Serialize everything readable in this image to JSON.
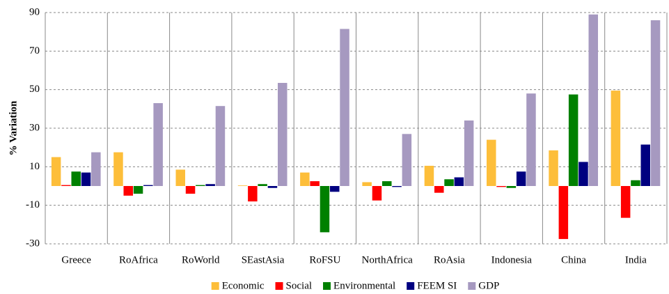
{
  "chart_data": {
    "type": "bar",
    "y_label": "% Variation",
    "categories": [
      "Greece",
      "RoAfrica",
      "RoWorld",
      "SEastAsia",
      "RoFSU",
      "NorthAfrica",
      "RoAsia",
      "Indonesia",
      "China",
      "India"
    ],
    "series": [
      {
        "name": "Economic",
        "color": "#fdbe3a",
        "values": [
          15,
          17.5,
          8.5,
          0.3,
          7,
          2,
          10.5,
          24,
          18.5,
          49.5
        ]
      },
      {
        "name": "Social",
        "color": "#ff0000",
        "values": [
          0.5,
          -5,
          -4,
          -8,
          2.5,
          -7.5,
          -3.5,
          -0.5,
          -27.5,
          -16.5
        ]
      },
      {
        "name": "Environmental",
        "color": "#008000",
        "values": [
          7.5,
          -4,
          0.5,
          1,
          -24,
          2.5,
          3.5,
          -1,
          47.5,
          3
        ]
      },
      {
        "name": "FEEM SI",
        "color": "#000080",
        "values": [
          7,
          0.5,
          1,
          -1,
          -3,
          -0.5,
          4.5,
          7.5,
          12.5,
          21.5
        ]
      },
      {
        "name": "GDP",
        "color": "#a699c0",
        "values": [
          17.5,
          43,
          41.5,
          53.5,
          81.5,
          27,
          34,
          48,
          89,
          86
        ]
      }
    ],
    "ylim": [
      -30,
      90
    ],
    "yticks": [
      -30,
      -10,
      10,
      30,
      50,
      70,
      90
    ],
    "grid": true
  }
}
